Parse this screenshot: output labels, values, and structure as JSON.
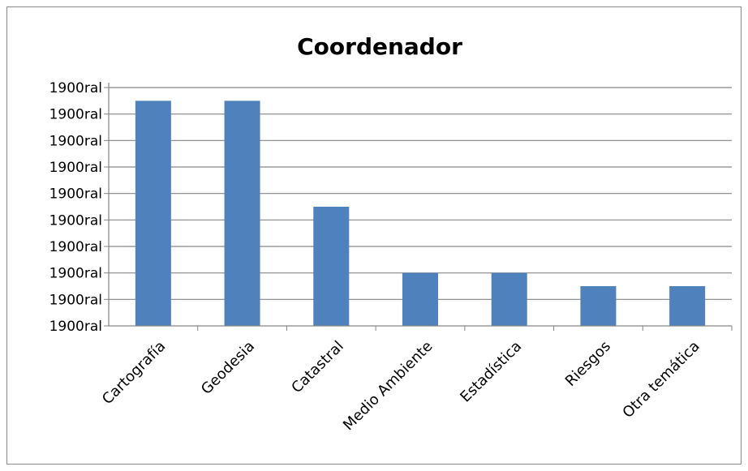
{
  "chart_data": {
    "type": "bar",
    "title": "Coordenador",
    "categories": [
      "Cartografía",
      "Geodesia",
      "Catastral",
      "Medio Ambiente",
      "Estadística",
      "Riesgos",
      "Otra temática"
    ],
    "values": [
      8.5,
      8.5,
      4.5,
      2.0,
      2.0,
      1.5,
      1.5
    ],
    "ylim": [
      0,
      9
    ],
    "y_tick_labels": [
      "1900ral",
      "1900ral",
      "1900ral",
      "1900ral",
      "1900ral",
      "1900ral",
      "1900ral",
      "1900ral",
      "1900ral",
      "1900ral"
    ],
    "grid": true,
    "legend": "none",
    "colors": {
      "bar": "#4F81BD",
      "grid": "#868686",
      "axis": "#868686"
    }
  }
}
